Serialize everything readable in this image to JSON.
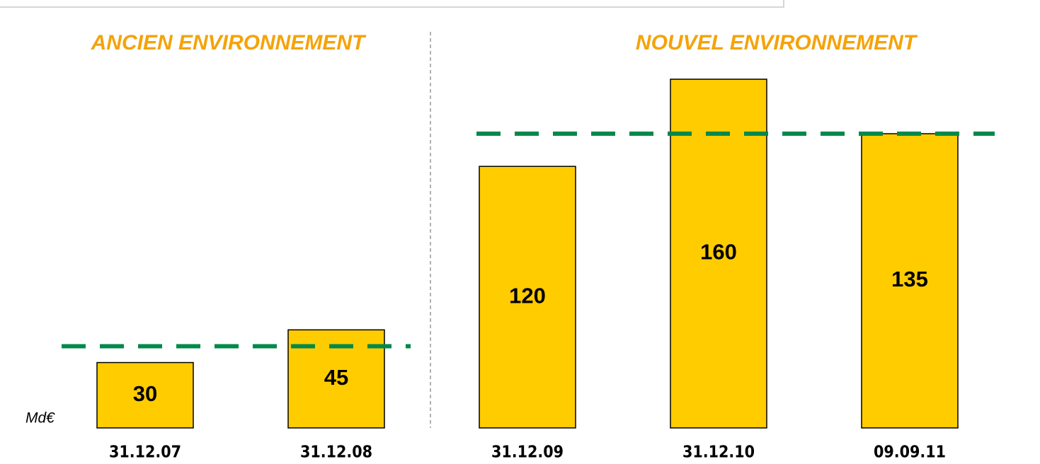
{
  "chart_data": {
    "type": "bar",
    "unit": "Md€",
    "color": "#ffcc00",
    "reference_color": "#00894b",
    "ylim": [
      0,
      160
    ],
    "panels": [
      {
        "title": "ANCIEN ENVIRONNEMENT",
        "categories": [
          "31.12.07",
          "31.12.08"
        ],
        "values": [
          30,
          45
        ],
        "reference": 37.5
      },
      {
        "title": "NOUVEL ENVIRONNEMENT",
        "categories": [
          "31.12.09",
          "31.12.10",
          "09.09.11"
        ],
        "values": [
          120,
          160,
          135
        ],
        "reference": 135
      }
    ]
  }
}
